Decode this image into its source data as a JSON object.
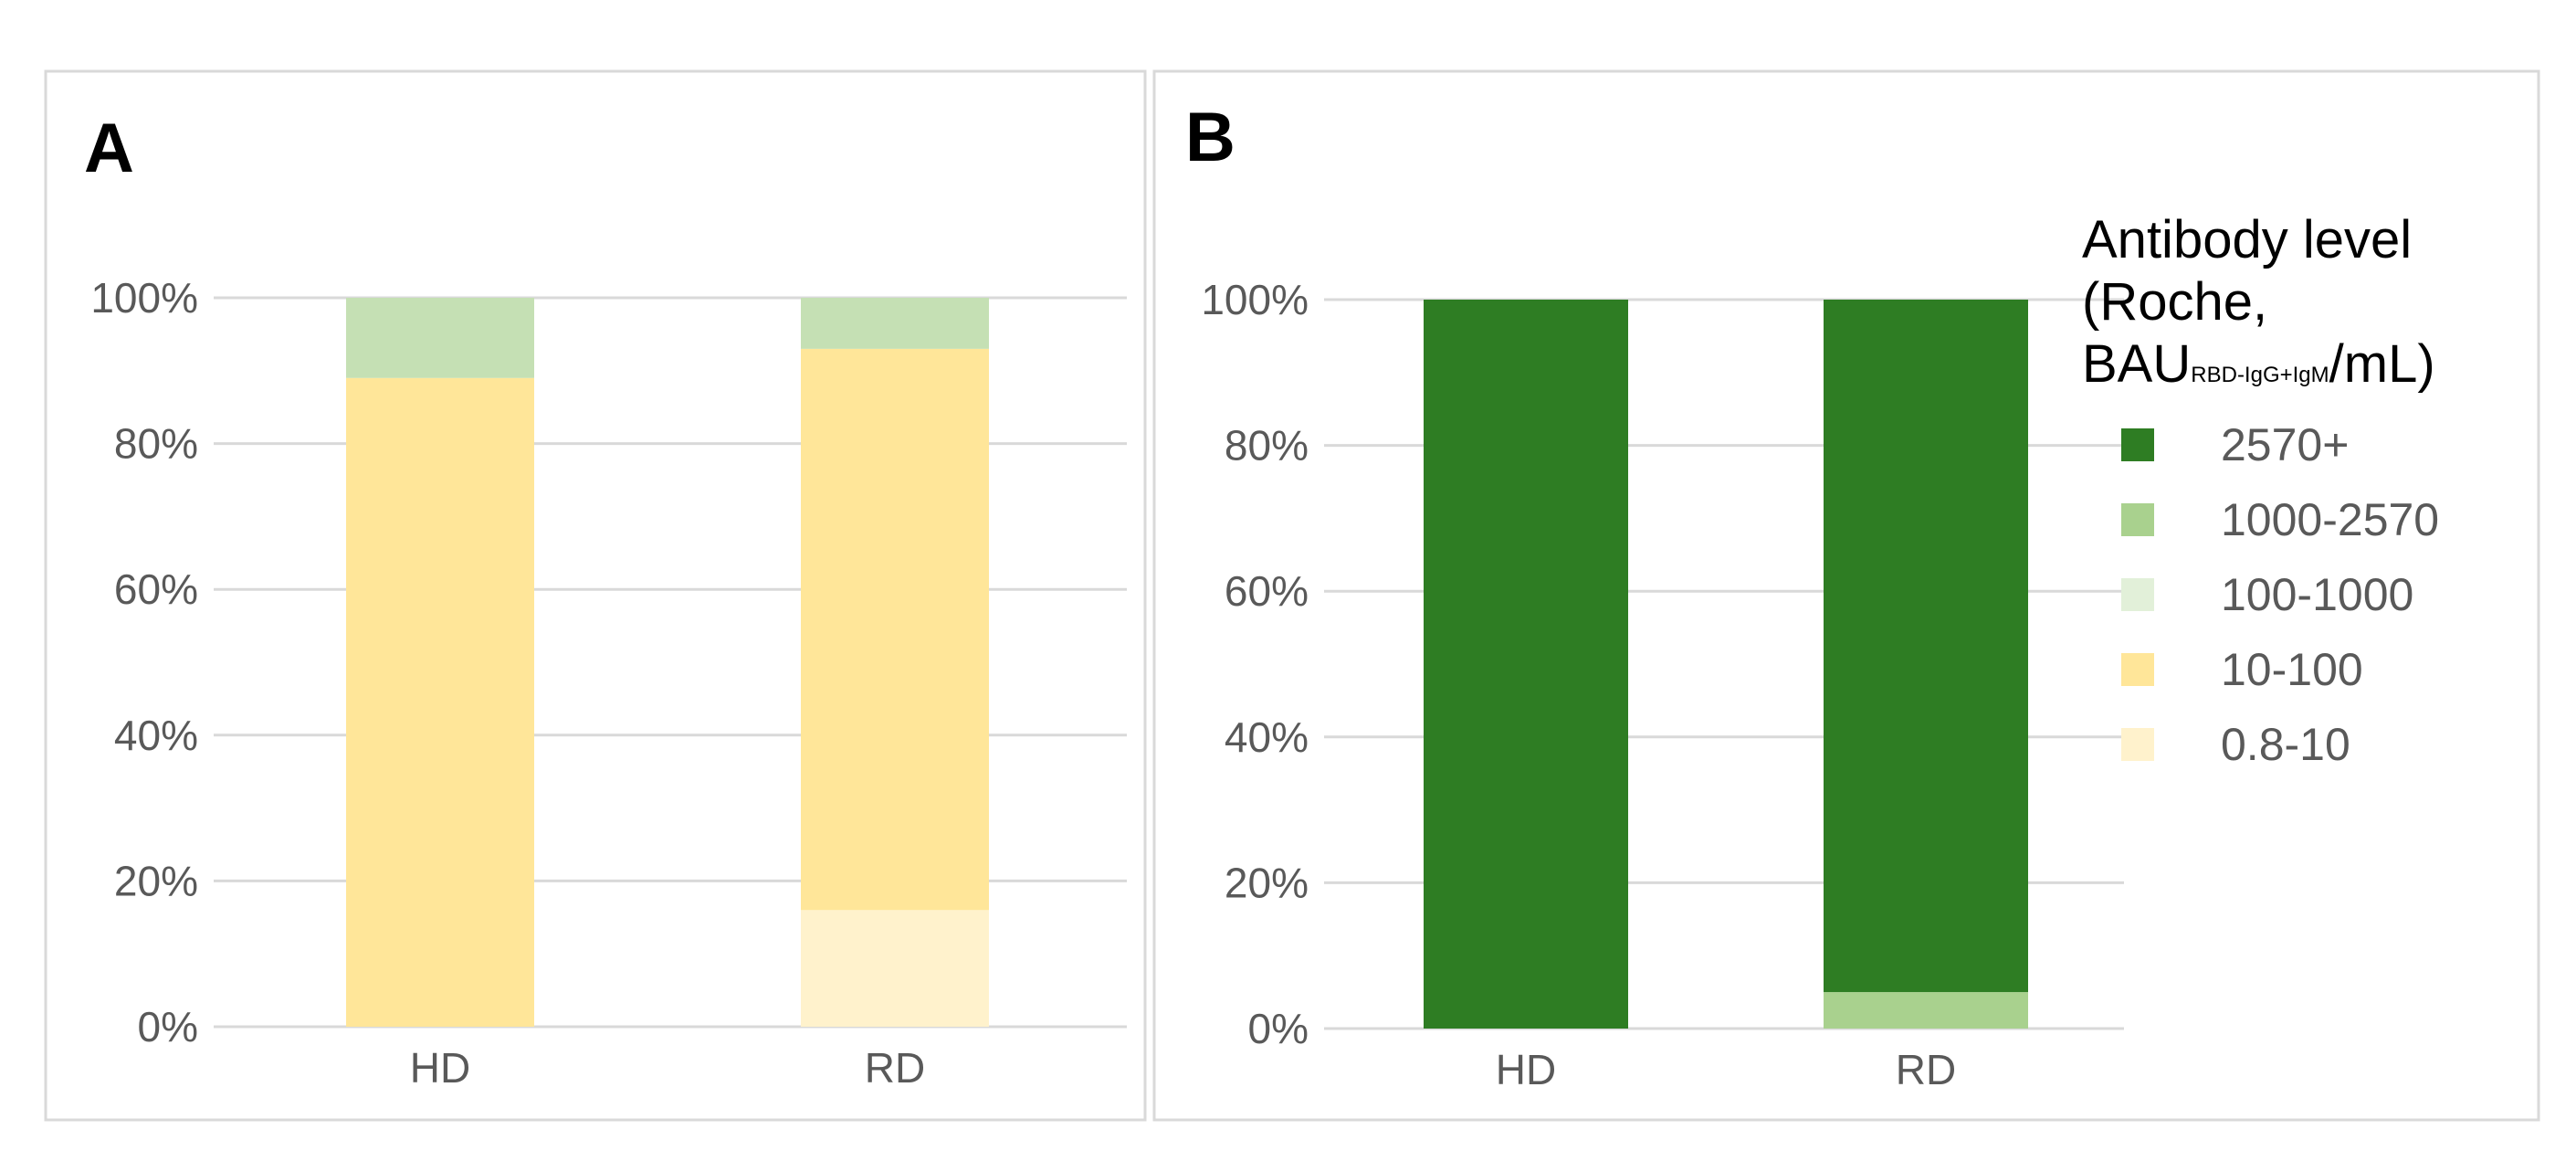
{
  "chart_data": [
    {
      "panel": "A",
      "type": "bar",
      "stacked": true,
      "categories": [
        "HD",
        "RD"
      ],
      "y_ticks": [
        "0%",
        "20%",
        "40%",
        "60%",
        "80%",
        "100%"
      ],
      "ylim": [
        0,
        100
      ],
      "grid": true,
      "series": [
        {
          "name": "0.8-10",
          "color": "#fff2cc",
          "values": [
            0,
            16
          ]
        },
        {
          "name": "10-100",
          "color": "#ffe699",
          "values": [
            89,
            77
          ]
        },
        {
          "name": "100-1000",
          "color": "#e2f0d9",
          "values": [
            0,
            0
          ]
        },
        {
          "name": "1000-2570",
          "color": "#c5e0b4",
          "values": [
            11,
            7
          ]
        },
        {
          "name": "2570+",
          "color": "#2e7d23",
          "values": [
            0,
            0
          ]
        }
      ]
    },
    {
      "panel": "B",
      "type": "bar",
      "stacked": true,
      "categories": [
        "HD",
        "RD"
      ],
      "y_ticks": [
        "0%",
        "20%",
        "40%",
        "60%",
        "80%",
        "100%"
      ],
      "ylim": [
        0,
        100
      ],
      "grid": true,
      "series": [
        {
          "name": "0.8-10",
          "color": "#fff2cc",
          "values": [
            0,
            0
          ]
        },
        {
          "name": "10-100",
          "color": "#ffe699",
          "values": [
            0,
            0
          ]
        },
        {
          "name": "100-1000",
          "color": "#e2f0d9",
          "values": [
            0,
            0
          ]
        },
        {
          "name": "1000-2570",
          "color": "#a9d18e",
          "values": [
            0,
            5
          ]
        },
        {
          "name": "2570+",
          "color": "#2e7d23",
          "values": [
            100,
            95
          ]
        }
      ]
    }
  ],
  "legend": {
    "title_lines": [
      "Antibody level",
      "(Roche,"
    ],
    "title_unit_main": "BAU",
    "title_unit_sub": "RBD-IgG+IgM",
    "title_unit_tail": "/mL)",
    "placement": "right",
    "items": [
      {
        "label": "2570+",
        "color": "#2e7d23"
      },
      {
        "label": "1000-2570",
        "color": "#a9d18e"
      },
      {
        "label": "100-1000",
        "color": "#e2f0d9"
      },
      {
        "label": "10-100",
        "color": "#ffe699"
      },
      {
        "label": "0.8-10",
        "color": "#fff2cc"
      }
    ]
  }
}
